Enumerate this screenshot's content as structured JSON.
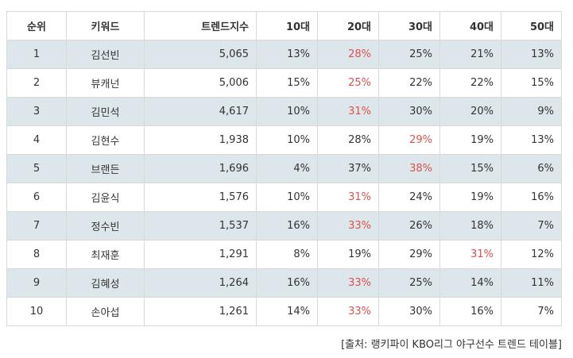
{
  "table": {
    "headers": {
      "rank": "순위",
      "keyword": "키워드",
      "index": "트렌드지수",
      "age10": "10대",
      "age20": "20대",
      "age30": "30대",
      "age40": "40대",
      "age50": "50대"
    },
    "rows": [
      {
        "rank": "1",
        "keyword": "김선빈",
        "index": "5,065",
        "age10": "13%",
        "age20": "28%",
        "age30": "25%",
        "age40": "21%",
        "age50": "13%",
        "highlight": "age20"
      },
      {
        "rank": "2",
        "keyword": "뷰캐넌",
        "index": "5,006",
        "age10": "15%",
        "age20": "25%",
        "age30": "22%",
        "age40": "22%",
        "age50": "15%",
        "highlight": "age20"
      },
      {
        "rank": "3",
        "keyword": "김민석",
        "index": "4,617",
        "age10": "10%",
        "age20": "31%",
        "age30": "30%",
        "age40": "20%",
        "age50": "9%",
        "highlight": "age20"
      },
      {
        "rank": "4",
        "keyword": "김현수",
        "index": "1,938",
        "age10": "10%",
        "age20": "28%",
        "age30": "29%",
        "age40": "19%",
        "age50": "13%",
        "highlight": "age30"
      },
      {
        "rank": "5",
        "keyword": "브랜든",
        "index": "1,696",
        "age10": "4%",
        "age20": "37%",
        "age30": "38%",
        "age40": "15%",
        "age50": "6%",
        "highlight": "age30"
      },
      {
        "rank": "6",
        "keyword": "김윤식",
        "index": "1,576",
        "age10": "10%",
        "age20": "31%",
        "age30": "24%",
        "age40": "19%",
        "age50": "16%",
        "highlight": "age20"
      },
      {
        "rank": "7",
        "keyword": "정수빈",
        "index": "1,537",
        "age10": "16%",
        "age20": "33%",
        "age30": "26%",
        "age40": "18%",
        "age50": "7%",
        "highlight": "age20"
      },
      {
        "rank": "8",
        "keyword": "최재훈",
        "index": "1,291",
        "age10": "8%",
        "age20": "19%",
        "age30": "29%",
        "age40": "31%",
        "age50": "12%",
        "highlight": "age40"
      },
      {
        "rank": "9",
        "keyword": "김혜성",
        "index": "1,264",
        "age10": "16%",
        "age20": "33%",
        "age30": "25%",
        "age40": "14%",
        "age50": "11%",
        "highlight": "age20"
      },
      {
        "rank": "10",
        "keyword": "손아섭",
        "index": "1,261",
        "age10": "14%",
        "age20": "33%",
        "age30": "30%",
        "age40": "16%",
        "age50": "7%",
        "highlight": "age20"
      }
    ]
  },
  "caption": "[출처: 랭키파이 KBO리그 야구선수 트렌드 테이블]",
  "colors": {
    "highlight_text": "#d9534f",
    "shaded_row": "#dde6ea",
    "border": "#d9d9d9"
  }
}
